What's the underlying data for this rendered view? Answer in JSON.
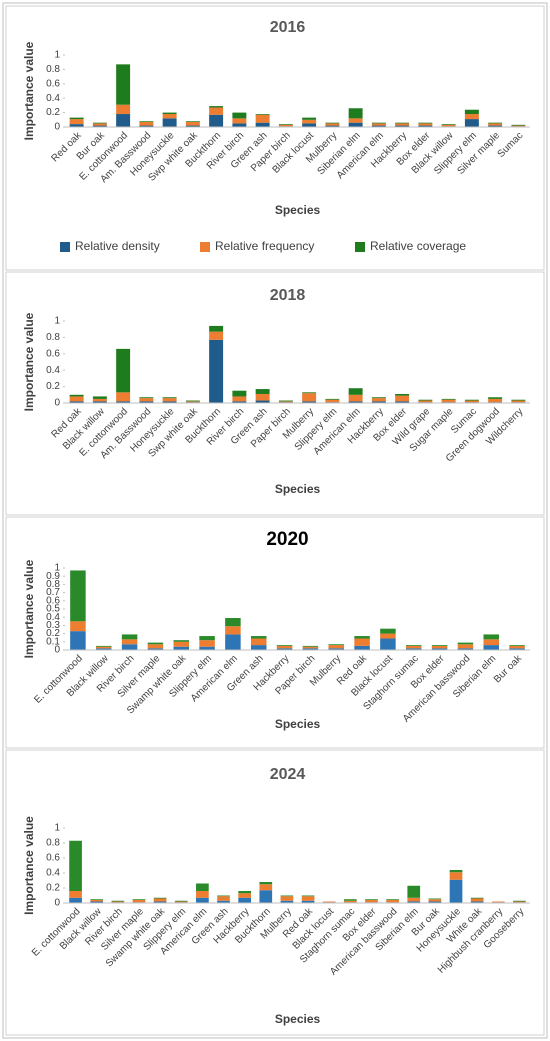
{
  "chart_data": [
    {
      "type": "bar",
      "stacked": true,
      "title": "2016",
      "ylabel": "Importance value",
      "xlabel": "Species",
      "categories": [
        "Red oak",
        "Bur oak",
        "E. cottonwood",
        "Am. Basswood",
        "Honeysuckle",
        "Swp white oak",
        "Buckthorn",
        "River birch",
        "Green ash",
        "Paper birch",
        "Black locust",
        "Mulberry",
        "Siberian elm",
        "American elm",
        "Hackberry",
        "Box elder",
        "Black willow",
        "Slippery elm",
        "Silver maple",
        "Sumac"
      ],
      "series": [
        {
          "name": "Relative density",
          "color": "#1f5c8b",
          "values": [
            0.04,
            0.02,
            0.18,
            0.02,
            0.12,
            0.02,
            0.17,
            0.05,
            0.06,
            0.01,
            0.05,
            0.02,
            0.06,
            0.02,
            0.02,
            0.02,
            0.01,
            0.11,
            0.02,
            0.01
          ]
        },
        {
          "name": "Relative frequency",
          "color": "#ed7d31",
          "values": [
            0.07,
            0.03,
            0.13,
            0.05,
            0.06,
            0.05,
            0.1,
            0.07,
            0.11,
            0.02,
            0.05,
            0.03,
            0.06,
            0.03,
            0.03,
            0.03,
            0.02,
            0.07,
            0.03,
            0.01
          ]
        },
        {
          "name": "Relative coverage",
          "color": "#1e7b1e",
          "values": [
            0.02,
            0.01,
            0.56,
            0.01,
            0.02,
            0.01,
            0.02,
            0.08,
            0.01,
            0.01,
            0.03,
            0.01,
            0.14,
            0.01,
            0.01,
            0.01,
            0.01,
            0.06,
            0.01,
            0.01
          ]
        }
      ],
      "ylim": [
        0,
        1
      ],
      "yticks": [
        0,
        0.2,
        0.4,
        0.6,
        0.8,
        1
      ],
      "legend": "bottom"
    },
    {
      "type": "bar",
      "stacked": true,
      "title": "2018",
      "ylabel": "Importance value",
      "xlabel": "Species",
      "categories": [
        "Red oak",
        "Black willow",
        "E. cottonwood",
        "Am. Basswood",
        "Honeysuckle",
        "Swp white oak",
        "Buckthorn",
        "River birch",
        "Green ash",
        "Paper birch",
        "Mulberry",
        "Slippery elm",
        "American elm",
        "Hackberry",
        "Box elder",
        "Wild grape",
        "Sugar maple",
        "Sumac",
        "Green dogwood",
        "Wildcherry"
      ],
      "series": [
        {
          "color": "#1f5c8b",
          "values": [
            0.02,
            0.02,
            0.02,
            0.02,
            0.02,
            0.01,
            0.77,
            0.02,
            0.03,
            0.01,
            0.02,
            0.01,
            0.02,
            0.02,
            0.02,
            0.01,
            0.01,
            0.01,
            0.01,
            0.01
          ]
        },
        {
          "color": "#ed7d31",
          "values": [
            0.06,
            0.03,
            0.11,
            0.04,
            0.04,
            0.01,
            0.1,
            0.06,
            0.08,
            0.01,
            0.1,
            0.03,
            0.08,
            0.04,
            0.07,
            0.02,
            0.03,
            0.02,
            0.04,
            0.02
          ]
        },
        {
          "color": "#1e7b1e",
          "values": [
            0.02,
            0.03,
            0.53,
            0.01,
            0.01,
            0.01,
            0.07,
            0.07,
            0.06,
            0.01,
            0.01,
            0.01,
            0.08,
            0.01,
            0.02,
            0.01,
            0.01,
            0.01,
            0.02,
            0.01
          ]
        }
      ],
      "ylim": [
        0,
        1
      ],
      "yticks": [
        0,
        0.2,
        0.4,
        0.6,
        0.8,
        1
      ]
    },
    {
      "type": "bar",
      "stacked": true,
      "title": "2020",
      "ylabel": "Importance value",
      "xlabel": "Species",
      "categories": [
        "E. cottonwood",
        "Black willow",
        "River birch",
        "Silver maple",
        "Swamp white oak",
        "Slippery elm",
        "American elm",
        "Green ash",
        "Hackberry",
        "Paper birch",
        "Mulberry",
        "Red oak",
        "Black locust",
        "Staghorn sumac",
        "Box elder",
        "American basswood",
        "Siberian elm",
        "Bur oak"
      ],
      "series": [
        {
          "color": "#2e75b6",
          "values": [
            0.23,
            0.02,
            0.07,
            0.02,
            0.04,
            0.04,
            0.19,
            0.06,
            0.02,
            0.02,
            0.02,
            0.05,
            0.14,
            0.02,
            0.02,
            0.02,
            0.06,
            0.02
          ]
        },
        {
          "color": "#ed7d31",
          "values": [
            0.12,
            0.02,
            0.06,
            0.05,
            0.06,
            0.08,
            0.1,
            0.08,
            0.03,
            0.02,
            0.04,
            0.09,
            0.06,
            0.03,
            0.03,
            0.05,
            0.07,
            0.03
          ]
        },
        {
          "color": "#2a8a2a",
          "values": [
            0.62,
            0.01,
            0.06,
            0.02,
            0.02,
            0.05,
            0.1,
            0.03,
            0.01,
            0.01,
            0.01,
            0.03,
            0.06,
            0.01,
            0.01,
            0.02,
            0.06,
            0.01
          ]
        }
      ],
      "ylim": [
        0,
        1
      ],
      "yticks": [
        0,
        0.1,
        0.2,
        0.3,
        0.4,
        0.5,
        0.6,
        0.7,
        0.8,
        0.9,
        1
      ]
    },
    {
      "type": "bar",
      "stacked": true,
      "title": "2024",
      "ylabel": "Importance value",
      "xlabel": "Species",
      "categories": [
        "E. cottonwood",
        "Black willow",
        "River birch",
        "Silver maple",
        "Swamp white oak",
        "Slippery elm",
        "American elm",
        "Green ash",
        "Hackberry",
        "Buckthorn",
        "Mulberry",
        "Red oak",
        "Black locust",
        "Staghorn sumac",
        "Box elder",
        "American basswood",
        "Siberian elm",
        "Bur oak",
        "Honeysuckle",
        "White oak",
        "Highbush cranberry",
        "Gooseberry"
      ],
      "series": [
        {
          "color": "#2e75b6",
          "values": [
            0.07,
            0.02,
            0.01,
            0.01,
            0.02,
            0.01,
            0.07,
            0.03,
            0.07,
            0.17,
            0.03,
            0.03,
            0.01,
            0.01,
            0.01,
            0.01,
            0.02,
            0.02,
            0.31,
            0.02,
            0.01,
            0.01
          ]
        },
        {
          "color": "#ed7d31",
          "values": [
            0.09,
            0.02,
            0.01,
            0.03,
            0.04,
            0.01,
            0.09,
            0.06,
            0.06,
            0.08,
            0.06,
            0.06,
            0.01,
            0.02,
            0.03,
            0.03,
            0.05,
            0.03,
            0.1,
            0.04,
            0.01,
            0.01
          ]
        },
        {
          "color": "#2a8a2a",
          "values": [
            0.67,
            0.01,
            0.01,
            0.01,
            0.01,
            0.01,
            0.1,
            0.01,
            0.03,
            0.03,
            0.01,
            0.01,
            0,
            0.02,
            0.01,
            0.01,
            0.16,
            0.01,
            0.03,
            0.01,
            0,
            0.01
          ]
        }
      ],
      "ylim": [
        0,
        1
      ],
      "yticks": [
        0,
        0.2,
        0.4,
        0.6,
        0.8,
        1
      ]
    }
  ]
}
